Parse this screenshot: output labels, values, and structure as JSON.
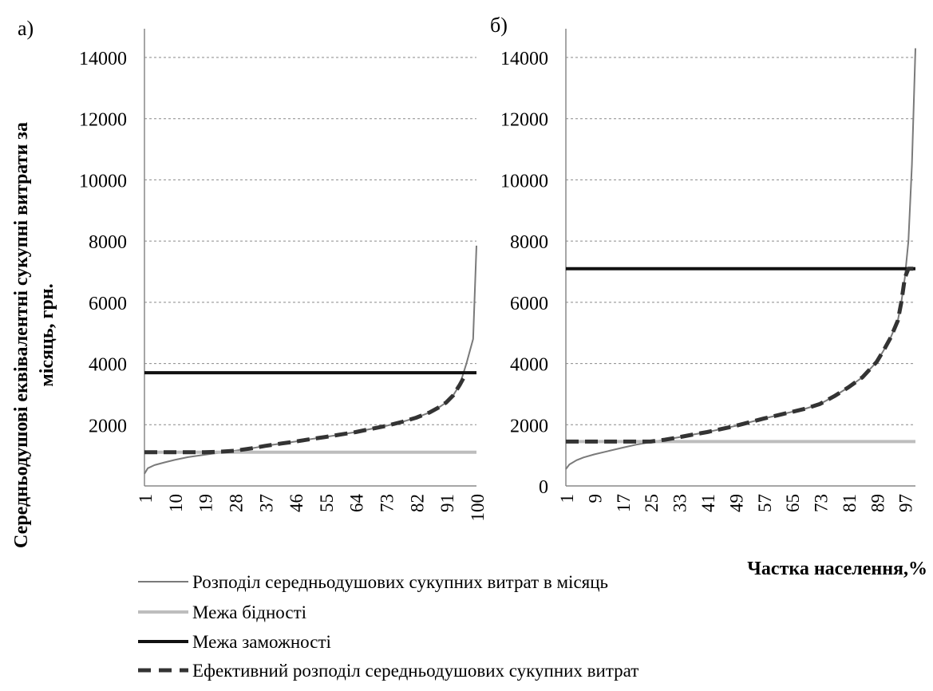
{
  "figure": {
    "ylabel": "Середньодушові еквівалентні сукупні  витрати за місяць, грн.",
    "xlabel": "Частка населення,%"
  },
  "legend": [
    {
      "label": "Розподіл середньодушових сукупних витрат в місяць",
      "color": "#7a7a7a",
      "style": "thin-solid"
    },
    {
      "label": "Межа бідності",
      "color": "#bdbdbd",
      "style": "thick-solid"
    },
    {
      "label": "Межа заможності",
      "color": "#111111",
      "style": "thick-solid"
    },
    {
      "label": "Ефективний розподіл середньодушових сукупних витрат",
      "color": "#333333",
      "style": "thick-dashed"
    }
  ],
  "chart_data": [
    {
      "panel_label": "а)",
      "type": "line",
      "ylim": [
        0,
        14000
      ],
      "yticks": [
        0,
        2000,
        4000,
        6000,
        8000,
        10000,
        12000,
        14000
      ],
      "ytick_labels": [
        "",
        "2000",
        "4000",
        "6000",
        "8000",
        "10000",
        "12000",
        "14000"
      ],
      "xlim": [
        1,
        100
      ],
      "xticks": [
        1,
        10,
        19,
        28,
        37,
        46,
        55,
        64,
        73,
        82,
        91,
        100
      ],
      "grid": "horizontal-dashed",
      "series": [
        {
          "name": "Розподіл середньодушових сукупних витрат в місяць",
          "x": [
            1,
            2,
            4,
            7,
            10,
            14,
            19,
            23,
            28,
            33,
            37,
            42,
            46,
            50,
            55,
            60,
            64,
            68,
            73,
            78,
            82,
            86,
            89,
            91,
            93,
            95,
            96,
            97,
            98,
            99,
            100
          ],
          "y": [
            400,
            580,
            680,
            770,
            850,
            940,
            1020,
            1080,
            1150,
            1230,
            1310,
            1390,
            1450,
            1520,
            1600,
            1690,
            1760,
            1850,
            1960,
            2100,
            2230,
            2400,
            2580,
            2730,
            2950,
            3300,
            3650,
            4000,
            4400,
            4800,
            7850
          ]
        },
        {
          "name": "Межа бідності",
          "x": [
            1,
            100
          ],
          "y": [
            1100,
            1100
          ]
        },
        {
          "name": "Межа заможності",
          "x": [
            1,
            100
          ],
          "y": [
            3700,
            3700
          ]
        },
        {
          "name": "Ефективний розподіл середньодушових сукупних витрат",
          "x": [
            1,
            10,
            19,
            24,
            28,
            33,
            37,
            42,
            46,
            50,
            55,
            60,
            64,
            68,
            73,
            78,
            82,
            86,
            89,
            91,
            93,
            95,
            96,
            97
          ],
          "y": [
            1100,
            1100,
            1100,
            1120,
            1150,
            1230,
            1310,
            1390,
            1450,
            1520,
            1600,
            1690,
            1760,
            1850,
            1960,
            2100,
            2230,
            2400,
            2580,
            2730,
            2950,
            3300,
            3500,
            3700
          ]
        }
      ]
    },
    {
      "panel_label": "б)",
      "type": "line",
      "ylim": [
        0,
        14000
      ],
      "yticks": [
        0,
        2000,
        4000,
        6000,
        8000,
        10000,
        12000,
        14000
      ],
      "ytick_labels": [
        "0",
        "2000",
        "4000",
        "6000",
        "8000",
        "10000",
        "12000",
        "14000"
      ],
      "xlim": [
        1,
        100
      ],
      "xticks": [
        1,
        9,
        17,
        25,
        33,
        41,
        49,
        57,
        65,
        73,
        81,
        89,
        97
      ],
      "grid": "horizontal-dashed",
      "series": [
        {
          "name": "Розподіл середньодушових сукупних витрат в місяць",
          "x": [
            1,
            2,
            4,
            6,
            9,
            13,
            17,
            21,
            25,
            29,
            33,
            37,
            41,
            45,
            49,
            53,
            57,
            61,
            65,
            69,
            73,
            77,
            81,
            85,
            89,
            91,
            93,
            95,
            96,
            97,
            98,
            99,
            100
          ],
          "y": [
            550,
            700,
            840,
            930,
            1030,
            1140,
            1250,
            1350,
            1430,
            1510,
            1590,
            1680,
            1760,
            1860,
            1960,
            2080,
            2200,
            2310,
            2420,
            2530,
            2680,
            2930,
            3220,
            3550,
            4050,
            4430,
            4850,
            5400,
            6000,
            6800,
            8000,
            10500,
            14300
          ]
        },
        {
          "name": "Межа бідності",
          "x": [
            1,
            100
          ],
          "y": [
            1450,
            1450
          ]
        },
        {
          "name": "Межа заможності",
          "x": [
            1,
            100
          ],
          "y": [
            7100,
            7100
          ]
        },
        {
          "name": "Ефективний розподіл середньодушових сукупних витрат",
          "x": [
            1,
            9,
            17,
            25,
            29,
            33,
            37,
            41,
            45,
            49,
            53,
            57,
            61,
            65,
            69,
            73,
            77,
            81,
            85,
            89,
            91,
            93,
            95,
            96,
            97,
            98,
            99,
            100
          ],
          "y": [
            1450,
            1450,
            1450,
            1450,
            1510,
            1590,
            1680,
            1760,
            1860,
            1960,
            2080,
            2200,
            2310,
            2420,
            2530,
            2680,
            2930,
            3220,
            3550,
            4050,
            4430,
            4850,
            5400,
            6000,
            6800,
            7100,
            7100,
            7100
          ]
        }
      ]
    }
  ]
}
